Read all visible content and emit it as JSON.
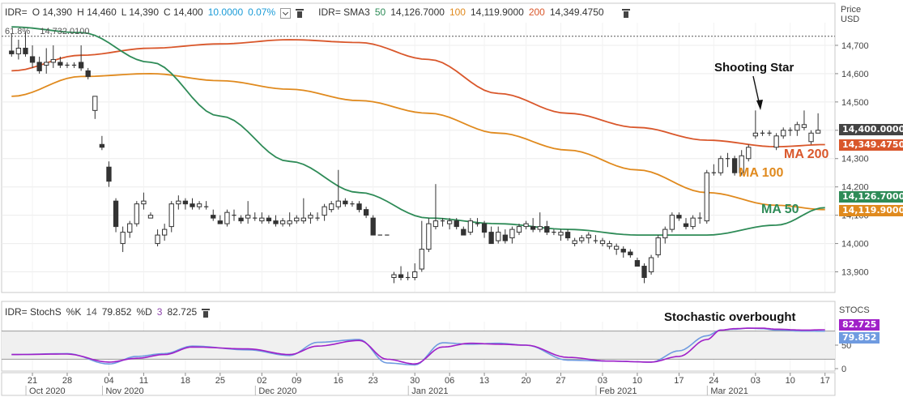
{
  "colors": {
    "ma50": "#2e8b57",
    "ma100": "#e08a1e",
    "ma200": "#d9572b",
    "stoch_k": "#6f9be0",
    "stoch_d": "#a020c8",
    "price_tag": "#444444",
    "up_candle": "#ffffff",
    "down_candle": "#333333",
    "ref_line": "#555555",
    "band": "#f0f0f0"
  },
  "main_header": {
    "symbol": "IDR=",
    "open": "O 14,390",
    "high": "H 14,460",
    "low": "L 14,390",
    "close": "C 14,400",
    "change": "10.0000",
    "change_pct": "0.07%",
    "study": "IDR= SMA3",
    "ma50_label": "50",
    "ma50_value": "14,126.7000",
    "ma100_label": "100",
    "ma100_value": "14,119.9000",
    "ma200_label": "200",
    "ma200_value": "14,349.4750",
    "dropdown_icon": "chevron-down-icon",
    "delete_icon": "trash-icon"
  },
  "price_axis": {
    "title": "Price",
    "unit": "USD",
    "ticks": [
      "14,700",
      "14,600",
      "14,500",
      "14,400",
      "14,300",
      "14,200",
      "14,100",
      "14,000",
      "13,900"
    ]
  },
  "price_tags": {
    "last": "14,400.0000",
    "ma200": "14,349.4750",
    "ma50": "14,126.7000",
    "ma100": "14,119.9000"
  },
  "fib_level": {
    "label": "61.8%",
    "value": "14,732.0100"
  },
  "annotations": {
    "shooting_star": "Shooting Star",
    "ma200": "MA 200",
    "ma100": "MA 100",
    "ma50": "MA 50",
    "stoch_overbought": "Stochastic overbought"
  },
  "stoch_header": {
    "label": "IDR= StochS",
    "k_label": "%K",
    "k_period": "14",
    "k_value": "79.852",
    "d_label": "%D",
    "d_period": "3",
    "d_value": "82.725",
    "delete_icon": "trash-icon"
  },
  "stoch_axis": {
    "title": "STOCS",
    "ticks": [
      "50",
      "0"
    ],
    "k_tag": "79.852",
    "d_tag": "82.725"
  },
  "x_axis": {
    "day_ticks": [
      "21",
      "28",
      "04",
      "11",
      "18",
      "25",
      "02",
      "09",
      "16",
      "23",
      "30",
      "06",
      "13",
      "20",
      "27",
      "03",
      "10",
      "17",
      "24",
      "03",
      "10",
      "17"
    ],
    "month_labels": [
      "Oct 2020",
      "Nov 2020",
      "Dec 2020",
      "Jan 2021",
      "Feb 2021",
      "Mar 2021"
    ]
  },
  "chart_data": [
    {
      "type": "candlestick",
      "title": "",
      "ylabel": "Price USD",
      "ylim": [
        13850,
        14780
      ],
      "grid": true,
      "ohlc": [
        [
          14680,
          14740,
          14660,
          14670
        ],
        [
          14670,
          14720,
          14650,
          14690
        ],
        [
          14690,
          14750,
          14660,
          14670
        ],
        [
          14660,
          14700,
          14620,
          14640
        ],
        [
          14640,
          14660,
          14600,
          14610
        ],
        [
          14630,
          14690,
          14600,
          14640
        ],
        [
          14640,
          14700,
          14620,
          14650
        ],
        [
          14640,
          14660,
          14620,
          14630
        ],
        [
          14630,
          14640,
          14620,
          14630
        ],
        [
          14630,
          14640,
          14620,
          14630
        ],
        [
          14640,
          14700,
          14610,
          14620
        ],
        [
          14610,
          14620,
          14580,
          14590
        ],
        [
          14470,
          14520,
          14440,
          14520
        ],
        [
          14350,
          14380,
          14330,
          14340
        ],
        [
          14270,
          14290,
          14200,
          14220
        ],
        [
          14150,
          14160,
          14040,
          14060
        ],
        [
          14000,
          14060,
          13970,
          14040
        ],
        [
          14040,
          14080,
          14020,
          14070
        ],
        [
          14070,
          14150,
          14060,
          14140
        ],
        [
          14140,
          14180,
          14120,
          14150
        ],
        [
          14090,
          14110,
          14090,
          14100
        ],
        [
          14000,
          14050,
          13990,
          14030
        ],
        [
          14030,
          14070,
          14010,
          14050
        ],
        [
          14060,
          14150,
          14040,
          14140
        ],
        [
          14140,
          14170,
          14120,
          14150
        ],
        [
          14150,
          14160,
          14120,
          14140
        ],
        [
          14140,
          14160,
          14120,
          14130
        ],
        [
          14130,
          14150,
          14120,
          14140
        ],
        [
          14130,
          14150,
          14120,
          14130
        ],
        [
          14100,
          14120,
          14080,
          14090
        ],
        [
          14080,
          14100,
          14070,
          14070
        ],
        [
          14070,
          14120,
          14060,
          14110
        ],
        [
          14100,
          14120,
          14080,
          14100
        ],
        [
          14090,
          14100,
          14070,
          14080
        ],
        [
          14090,
          14150,
          14070,
          14100
        ],
        [
          14090,
          14110,
          14080,
          14090
        ],
        [
          14080,
          14110,
          14070,
          14090
        ],
        [
          14090,
          14100,
          14070,
          14080
        ],
        [
          14080,
          14100,
          14060,
          14070
        ],
        [
          14070,
          14090,
          14060,
          14080
        ],
        [
          14070,
          14110,
          14060,
          14080
        ],
        [
          14080,
          14100,
          14070,
          14090
        ],
        [
          14080,
          14160,
          14070,
          14090
        ],
        [
          14090,
          14110,
          14070,
          14100
        ],
        [
          14090,
          14110,
          14080,
          14090
        ],
        [
          14100,
          14140,
          14080,
          14130
        ],
        [
          14120,
          14150,
          14110,
          14140
        ],
        [
          14130,
          14260,
          14120,
          14150
        ],
        [
          14150,
          14160,
          14130,
          14140
        ],
        [
          14140,
          14150,
          14130,
          14140
        ],
        [
          14140,
          14150,
          14110,
          14120
        ],
        [
          14120,
          14130,
          14090,
          14100
        ],
        [
          14090,
          14100,
          14030,
          14030
        ],
        [
          14030,
          14030,
          14030,
          14030
        ],
        [
          14030,
          14030,
          14030,
          14030
        ],
        [
          13880,
          13900,
          13860,
          13890
        ],
        [
          13890,
          13920,
          13870,
          13880
        ],
        [
          13880,
          13900,
          13870,
          13880
        ],
        [
          13880,
          13930,
          13870,
          13900
        ],
        [
          13910,
          14080,
          13900,
          13980
        ],
        [
          13980,
          14090,
          13970,
          14070
        ],
        [
          14060,
          14210,
          14050,
          14080
        ],
        [
          14080,
          14090,
          14060,
          14080
        ],
        [
          14070,
          14090,
          14050,
          14080
        ],
        [
          14080,
          14090,
          14050,
          14060
        ],
        [
          14050,
          14060,
          14030,
          14030
        ],
        [
          14040,
          14090,
          14030,
          14080
        ],
        [
          14070,
          14090,
          14060,
          14070
        ],
        [
          14070,
          14080,
          14020,
          14040
        ],
        [
          14040,
          14060,
          14000,
          14000
        ],
        [
          14010,
          14060,
          14000,
          14040
        ],
        [
          14030,
          14050,
          14000,
          14010
        ],
        [
          14020,
          14060,
          14000,
          14050
        ],
        [
          14040,
          14070,
          14030,
          14060
        ],
        [
          14060,
          14080,
          14050,
          14070
        ],
        [
          14060,
          14090,
          14040,
          14050
        ],
        [
          14050,
          14110,
          14040,
          14060
        ],
        [
          14060,
          14080,
          14030,
          14040
        ],
        [
          14040,
          14050,
          14030,
          14040
        ],
        [
          14030,
          14050,
          14010,
          14040
        ],
        [
          14040,
          14050,
          14010,
          14020
        ],
        [
          14000,
          14020,
          13990,
          14010
        ],
        [
          14010,
          14030,
          14000,
          14020
        ],
        [
          14020,
          14040,
          14000,
          14030
        ],
        [
          14010,
          14030,
          14000,
          14010
        ],
        [
          14000,
          14020,
          13990,
          14010
        ],
        [
          13990,
          14010,
          13980,
          14000
        ],
        [
          13980,
          14000,
          13960,
          13990
        ],
        [
          13980,
          13990,
          13950,
          13970
        ],
        [
          13970,
          13980,
          13950,
          13960
        ],
        [
          13940,
          13950,
          13920,
          13920
        ],
        [
          13920,
          13930,
          13860,
          13880
        ],
        [
          13900,
          13960,
          13890,
          13950
        ],
        [
          13960,
          14030,
          13950,
          14020
        ],
        [
          14020,
          14060,
          14000,
          14050
        ],
        [
          14050,
          14110,
          14040,
          14100
        ],
        [
          14100,
          14110,
          14080,
          14090
        ],
        [
          14070,
          14090,
          14050,
          14060
        ],
        [
          14060,
          14100,
          14050,
          14090
        ],
        [
          14090,
          14110,
          14070,
          14090
        ],
        [
          14080,
          14260,
          14070,
          14250
        ],
        [
          14250,
          14280,
          14240,
          14250
        ],
        [
          14250,
          14310,
          14240,
          14300
        ],
        [
          14300,
          14320,
          14270,
          14300
        ],
        [
          14300,
          14310,
          14240,
          14250
        ],
        [
          14250,
          14330,
          14240,
          14310
        ],
        [
          14300,
          14350,
          14290,
          14340
        ],
        [
          14380,
          14470,
          14370,
          14390
        ],
        [
          14390,
          14400,
          14380,
          14390
        ],
        [
          14390,
          14400,
          14380,
          14390
        ],
        [
          14340,
          14390,
          14330,
          14380
        ],
        [
          14380,
          14410,
          14370,
          14400
        ],
        [
          14400,
          14410,
          14380,
          14400
        ],
        [
          14400,
          14430,
          14380,
          14420
        ],
        [
          14410,
          14470,
          14400,
          14420
        ],
        [
          14360,
          14400,
          14350,
          14390
        ],
        [
          14390,
          14460,
          14390,
          14400
        ]
      ],
      "series": [
        {
          "name": "MA 200",
          "x": [
            0,
            10,
            20,
            30,
            40,
            50,
            60,
            70,
            80,
            90,
            100,
            110,
            117
          ],
          "values": [
            14610,
            14665,
            14690,
            14705,
            14720,
            14710,
            14650,
            14530,
            14460,
            14410,
            14365,
            14342,
            14349.475
          ]
        },
        {
          "name": "MA 100",
          "x": [
            0,
            10,
            20,
            30,
            40,
            50,
            60,
            70,
            80,
            90,
            100,
            110,
            117
          ],
          "values": [
            14520,
            14590,
            14600,
            14575,
            14545,
            14505,
            14460,
            14390,
            14330,
            14260,
            14180,
            14135,
            14119.9
          ]
        },
        {
          "name": "MA 50",
          "x": [
            0,
            10,
            20,
            30,
            40,
            50,
            60,
            70,
            80,
            90,
            100,
            110,
            117
          ],
          "values": [
            14765,
            14745,
            14640,
            14450,
            14290,
            14180,
            14090,
            14070,
            14050,
            14030,
            14030,
            14065,
            14126.7
          ]
        }
      ],
      "reference_lines": [
        {
          "label": "61.8%",
          "value": 14732.01
        }
      ]
    },
    {
      "type": "line",
      "title": "",
      "ylabel": "",
      "ylim": [
        0,
        100
      ],
      "bands": [
        20,
        80
      ],
      "series": [
        {
          "name": "%K",
          "x": [
            0,
            8,
            14,
            18,
            22,
            26,
            34,
            40,
            44,
            50,
            54,
            58,
            62,
            66,
            70,
            74,
            80,
            86,
            92,
            96,
            100,
            102,
            104,
            106,
            108,
            110,
            114,
            117
          ],
          "values": [
            30,
            32,
            10,
            26,
            32,
            48,
            40,
            28,
            56,
            62,
            12,
            8,
            55,
            52,
            54,
            50,
            18,
            16,
            14,
            38,
            70,
            82,
            84,
            86,
            85,
            82,
            80,
            79.852
          ]
        },
        {
          "name": "%D",
          "x": [
            0,
            8,
            14,
            18,
            22,
            26,
            34,
            40,
            44,
            50,
            54,
            58,
            62,
            66,
            70,
            74,
            80,
            86,
            92,
            96,
            100,
            102,
            104,
            106,
            108,
            110,
            114,
            117
          ],
          "values": [
            30,
            31,
            14,
            22,
            30,
            46,
            42,
            30,
            48,
            60,
            20,
            10,
            46,
            54,
            52,
            50,
            24,
            16,
            14,
            26,
            62,
            82,
            85,
            86,
            86,
            84,
            82,
            82.725
          ]
        }
      ]
    }
  ]
}
